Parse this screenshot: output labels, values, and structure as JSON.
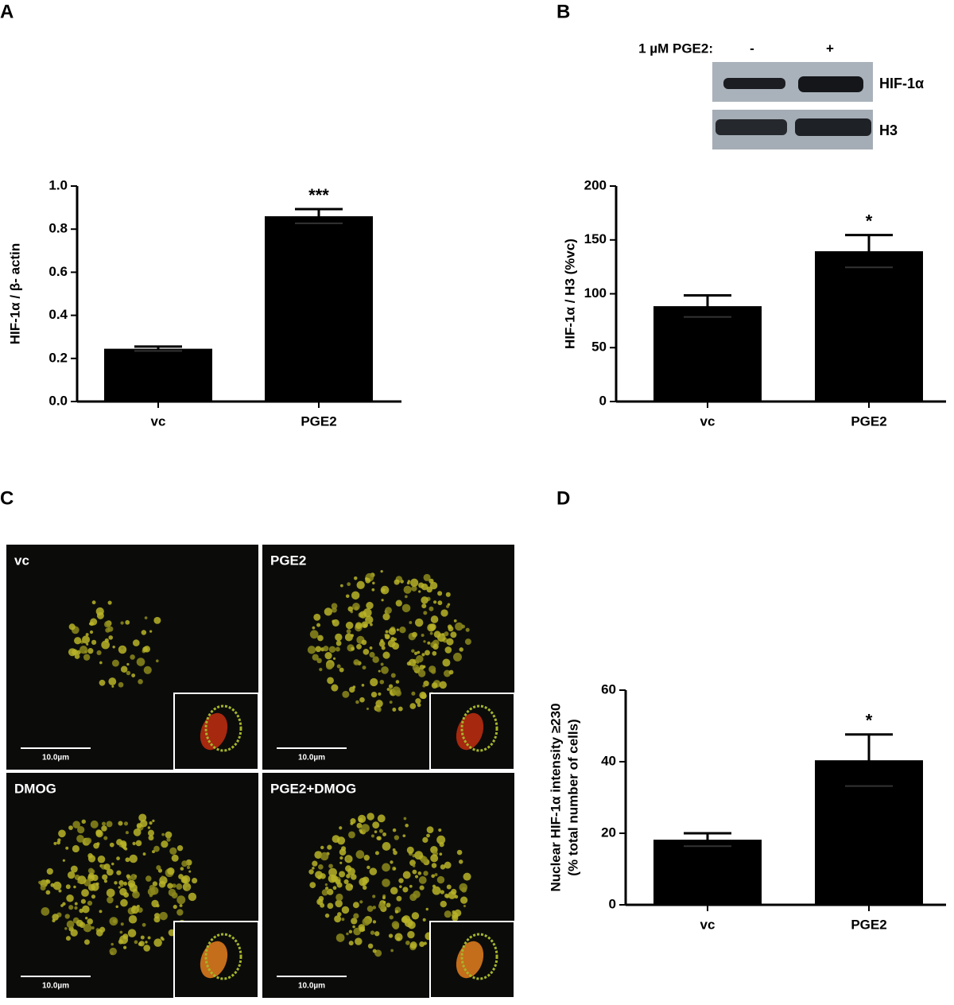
{
  "panel_labels": [
    "A",
    "B",
    "C",
    "D"
  ],
  "chart_data": [
    {
      "type": "bar",
      "ylabel": "HIF-1α / β- actin",
      "categories": [
        "vc",
        "PGE2"
      ],
      "values": [
        0.245,
        0.86
      ],
      "errors": [
        0.01,
        0.033
      ],
      "color": "#000000",
      "annotation": "***",
      "ylim": [
        0,
        1
      ],
      "yticks": [
        {
          "value": 0,
          "label": "0.0"
        },
        {
          "value": 0.2,
          "label": "0.2"
        },
        {
          "value": 0.4,
          "label": "0.4"
        },
        {
          "value": 0.6,
          "label": "0.6"
        },
        {
          "value": 0.8,
          "label": "0.8"
        },
        {
          "value": 1,
          "label": "1.0"
        }
      ]
    },
    {
      "type": "bar",
      "ylabel": "HIF-1α  / H3 (%vc)",
      "categories": [
        "vc",
        "PGE2"
      ],
      "values": [
        88.5,
        139.5
      ],
      "errors": [
        10,
        15
      ],
      "color": "#000000",
      "annotation": "*",
      "ylim": [
        0,
        200
      ],
      "yticks": [
        0,
        50,
        100,
        150,
        200
      ]
    },
    {
      "type": "bar",
      "ylabel": [
        "Nuclear HIF-1α intensity ≥230",
        "(% total number of cells)"
      ],
      "categories": [
        "vc",
        "PGE2"
      ],
      "values": [
        18.2,
        40.4
      ],
      "errors": [
        1.8,
        7.2
      ],
      "color": "#000000",
      "annotation": "*",
      "ylim": [
        0,
        60
      ],
      "yticks": [
        0,
        20,
        40,
        60
      ]
    }
  ],
  "blot": {
    "treatment": "1 µM PGE2:",
    "lanes": [
      "-",
      "+"
    ],
    "bands": [
      "HIF-1α",
      "H3"
    ]
  },
  "micrographs": [
    {
      "label": "vc",
      "scale": "10.0µm"
    },
    {
      "label": "PGE2",
      "scale": "10.0µm"
    },
    {
      "label": "DMOG",
      "scale": "10.0µm"
    },
    {
      "label": "PGE2+DMOG",
      "scale": "10.0µm"
    }
  ]
}
